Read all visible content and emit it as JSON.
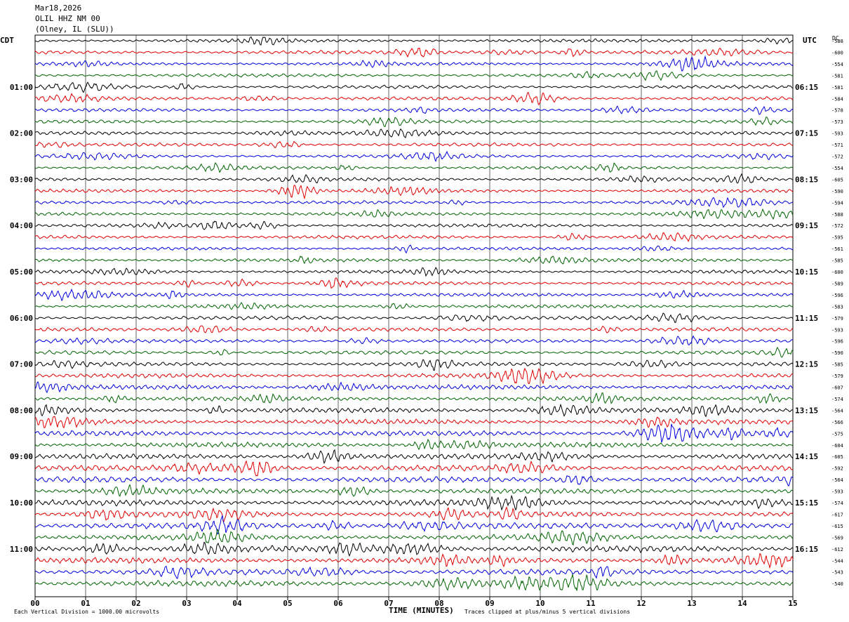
{
  "header": {
    "date": "Mar18,2026",
    "station": "OLIL HHZ NM 00",
    "location": "(Olney, IL (SLU))"
  },
  "labels": {
    "left_tz": "CDT",
    "right_tz": "UTC",
    "dc": "DC",
    "left_hours": [
      "01:00",
      "02:00",
      "03:00",
      "04:00",
      "05:00",
      "06:00",
      "07:00",
      "08:00",
      "09:00",
      "10:00",
      "11:00"
    ],
    "right_hours": [
      "06:15",
      "07:15",
      "08:15",
      "09:15",
      "10:15",
      "11:15",
      "12:15",
      "13:15",
      "14:15",
      "15:15",
      "16:15"
    ]
  },
  "footer": {
    "scale_note": "Each Vertical Division = 1000.00 microvolts",
    "xlabel": "TIME (MINUTES)",
    "clip_note": "Traces clipped at plus/minus 5 vertical divisions"
  },
  "colors": {
    "trace_cycle": [
      "#000000",
      "#e00000",
      "#0000dd",
      "#006400"
    ],
    "grid": "#000000"
  },
  "chart_data": {
    "type": "line",
    "title": "OLIL HHZ NM 00",
    "xlabel": "TIME (MINUTES)",
    "xlim": [
      0,
      15
    ],
    "x_ticks": [
      "00",
      "01",
      "02",
      "03",
      "04",
      "05",
      "06",
      "07",
      "08",
      "09",
      "10",
      "11",
      "12",
      "13",
      "14",
      "15"
    ],
    "rows_per_hour": 4,
    "minutes_per_row": 15,
    "row_count": 48,
    "dc_offsets": [
      -588,
      -600,
      -554,
      -581,
      -581,
      -584,
      -578,
      -573,
      -593,
      -571,
      -572,
      -554,
      -605,
      -590,
      -594,
      -588,
      -572,
      -595,
      -561,
      -585,
      -600,
      -589,
      -596,
      -583,
      -579,
      -593,
      -596,
      -590,
      -585,
      -579,
      -607,
      -574,
      -564,
      -566,
      -575,
      -604,
      -605,
      -592,
      -564,
      -593,
      -574,
      -617,
      -615,
      -569,
      -612,
      -544,
      -543,
      -540
    ],
    "relative_amplitude": [
      0.55,
      0.6,
      0.55,
      0.55,
      0.55,
      0.55,
      0.55,
      0.55,
      0.55,
      0.55,
      0.55,
      0.55,
      0.55,
      0.55,
      0.5,
      0.55,
      0.55,
      0.55,
      0.5,
      0.55,
      0.55,
      0.55,
      0.55,
      0.55,
      0.6,
      0.6,
      0.55,
      0.6,
      0.65,
      0.7,
      0.75,
      0.75,
      0.8,
      0.8,
      0.85,
      0.8,
      0.85,
      0.9,
      0.9,
      0.85,
      0.95,
      0.95,
      0.95,
      0.9,
      1.0,
      0.95,
      0.95,
      0.95
    ],
    "scale": "1000.00 microvolts per vertical division",
    "clip": "plus/minus 5 vertical divisions"
  }
}
